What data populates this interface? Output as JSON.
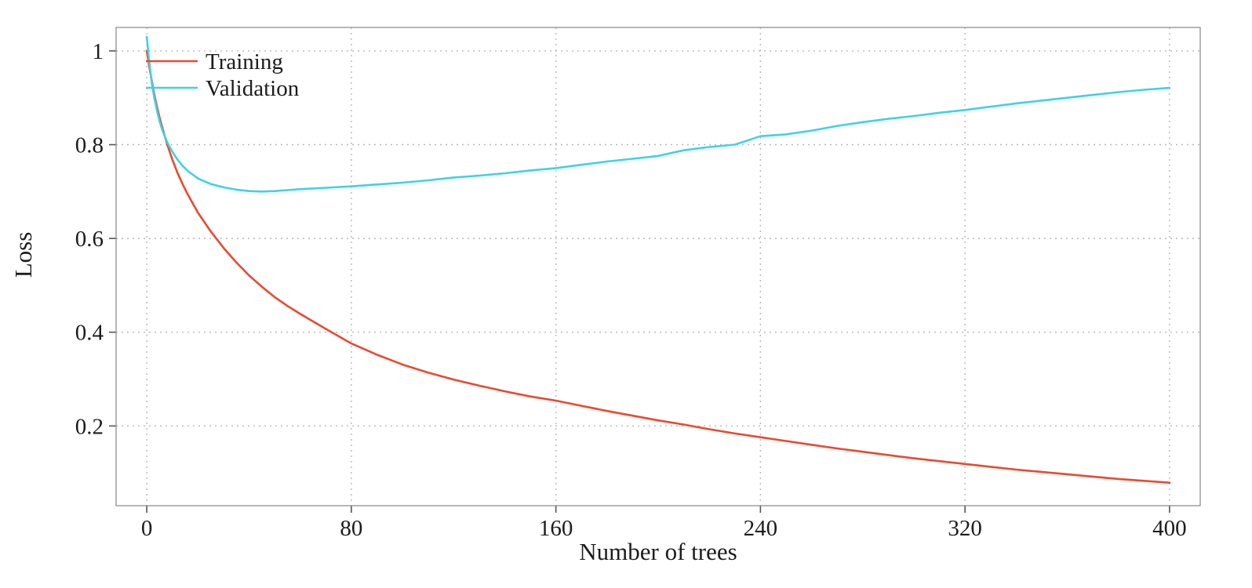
{
  "chart_data": {
    "type": "line",
    "title": "",
    "xlabel": "Number of trees",
    "ylabel": "Loss",
    "xlim": [
      -12,
      412
    ],
    "ylim": [
      0.03,
      1.05
    ],
    "x_ticks": [
      0,
      80,
      160,
      240,
      320,
      400
    ],
    "y_ticks": [
      0.2,
      0.4,
      0.6,
      0.8,
      1
    ],
    "grid": "dotted",
    "legend_position": "top-left",
    "frame": true,
    "x": [
      0,
      1,
      2,
      3,
      4,
      5,
      6,
      8,
      10,
      12,
      14,
      16,
      20,
      25,
      30,
      35,
      40,
      45,
      50,
      55,
      60,
      70,
      80,
      90,
      100,
      110,
      120,
      130,
      140,
      150,
      160,
      170,
      180,
      190,
      200,
      210,
      220,
      230,
      240,
      250,
      260,
      270,
      280,
      290,
      300,
      310,
      320,
      330,
      340,
      350,
      360,
      370,
      380,
      390,
      400
    ],
    "series": [
      {
        "name": "Training",
        "color": "#e84a32",
        "values": [
          1.0,
          0.965,
          0.935,
          0.905,
          0.88,
          0.858,
          0.838,
          0.8,
          0.768,
          0.74,
          0.716,
          0.694,
          0.655,
          0.615,
          0.58,
          0.549,
          0.521,
          0.497,
          0.475,
          0.456,
          0.439,
          0.407,
          0.376,
          0.352,
          0.331,
          0.314,
          0.299,
          0.286,
          0.274,
          0.263,
          0.254,
          0.243,
          0.232,
          0.222,
          0.212,
          0.203,
          0.193,
          0.184,
          0.176,
          0.168,
          0.16,
          0.152,
          0.145,
          0.138,
          0.131,
          0.125,
          0.119,
          0.113,
          0.107,
          0.102,
          0.097,
          0.092,
          0.087,
          0.083,
          0.079
        ]
      },
      {
        "name": "Validation",
        "color": "#3fd2e6",
        "values": [
          1.03,
          0.975,
          0.93,
          0.898,
          0.872,
          0.85,
          0.832,
          0.805,
          0.785,
          0.768,
          0.755,
          0.744,
          0.728,
          0.716,
          0.709,
          0.704,
          0.701,
          0.7,
          0.701,
          0.703,
          0.705,
          0.708,
          0.711,
          0.715,
          0.719,
          0.724,
          0.73,
          0.734,
          0.739,
          0.745,
          0.75,
          0.757,
          0.764,
          0.77,
          0.776,
          0.788,
          0.795,
          0.8,
          0.818,
          0.822,
          0.83,
          0.84,
          0.848,
          0.855,
          0.861,
          0.868,
          0.874,
          0.881,
          0.888,
          0.894,
          0.9,
          0.906,
          0.912,
          0.917,
          0.921
        ]
      }
    ]
  }
}
